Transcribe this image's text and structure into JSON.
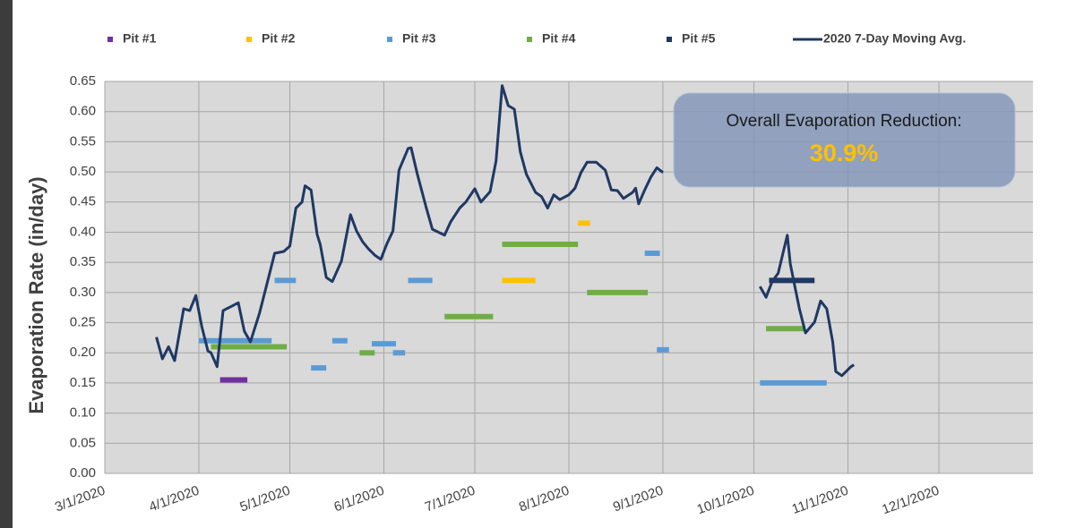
{
  "chart_data": {
    "type": "line",
    "y_label": "Evaporation Rate (in/day)",
    "annotation": {
      "text": "Overall Evaporation Reduction:",
      "highlight": "30.9%"
    },
    "xlim": [
      "2020-03-01",
      "2021-01-01"
    ],
    "xticks": [
      {
        "value": "2020-03-01",
        "label": "3/1/2020"
      },
      {
        "value": "2020-04-01",
        "label": "4/1/2020"
      },
      {
        "value": "2020-05-01",
        "label": "5/1/2020"
      },
      {
        "value": "2020-06-01",
        "label": "6/1/2020"
      },
      {
        "value": "2020-07-01",
        "label": "7/1/2020"
      },
      {
        "value": "2020-08-01",
        "label": "8/1/2020"
      },
      {
        "value": "2020-09-01",
        "label": "9/1/2020"
      },
      {
        "value": "2020-10-01",
        "label": "10/1/2020"
      },
      {
        "value": "2020-11-01",
        "label": "11/1/2020"
      },
      {
        "value": "2020-12-01",
        "label": "12/1/2020"
      }
    ],
    "ylim": [
      0,
      0.65
    ],
    "yticks": [
      {
        "value": 0,
        "label": "0.00"
      },
      {
        "value": 0.05,
        "label": "0.05"
      },
      {
        "value": 0.1,
        "label": "0.10"
      },
      {
        "value": 0.15,
        "label": "0.15"
      },
      {
        "value": 0.2,
        "label": "0.20"
      },
      {
        "value": 0.25,
        "label": "0.25"
      },
      {
        "value": 0.3,
        "label": "0.30"
      },
      {
        "value": 0.35,
        "label": "0.35"
      },
      {
        "value": 0.4,
        "label": "0.40"
      },
      {
        "value": 0.45,
        "label": "0.45"
      },
      {
        "value": 0.5,
        "label": "0.50"
      },
      {
        "value": 0.55,
        "label": "0.55"
      },
      {
        "value": 0.6,
        "label": "0.60"
      },
      {
        "value": 0.65,
        "label": "0.65"
      }
    ],
    "grid": true,
    "series": [
      {
        "name": "Pit #1",
        "color": "#7030a0",
        "segments": [
          {
            "start": "2020-04-08",
            "end": "2020-04-17",
            "value": 0.155
          }
        ]
      },
      {
        "name": "Pit #2",
        "color": "#ffc000",
        "segments": [
          {
            "start": "2020-07-10",
            "end": "2020-07-21",
            "value": 0.32
          },
          {
            "start": "2020-08-04",
            "end": "2020-08-08",
            "value": 0.415
          }
        ]
      },
      {
        "name": "Pit #3",
        "color": "#5b9bd5",
        "segments": [
          {
            "start": "2020-04-01",
            "end": "2020-04-25",
            "value": 0.22
          },
          {
            "start": "2020-04-26",
            "end": "2020-05-03",
            "value": 0.32
          },
          {
            "start": "2020-05-08",
            "end": "2020-05-13",
            "value": 0.175
          },
          {
            "start": "2020-05-15",
            "end": "2020-05-20",
            "value": 0.22
          },
          {
            "start": "2020-05-28",
            "end": "2020-06-05",
            "value": 0.215
          },
          {
            "start": "2020-06-04",
            "end": "2020-06-08",
            "value": 0.2
          },
          {
            "start": "2020-06-09",
            "end": "2020-06-17",
            "value": 0.32
          },
          {
            "start": "2020-08-26",
            "end": "2020-08-31",
            "value": 0.365
          },
          {
            "start": "2020-08-30",
            "end": "2020-09-03",
            "value": 0.205
          },
          {
            "start": "2020-10-03",
            "end": "2020-10-25",
            "value": 0.15
          }
        ]
      },
      {
        "name": "Pit #4",
        "color": "#70ad47",
        "segments": [
          {
            "start": "2020-04-05",
            "end": "2020-04-30",
            "value": 0.21
          },
          {
            "start": "2020-05-24",
            "end": "2020-05-29",
            "value": 0.2
          },
          {
            "start": "2020-06-21",
            "end": "2020-07-07",
            "value": 0.26
          },
          {
            "start": "2020-07-10",
            "end": "2020-08-04",
            "value": 0.38
          },
          {
            "start": "2020-08-07",
            "end": "2020-08-27",
            "value": 0.3
          },
          {
            "start": "2020-10-05",
            "end": "2020-10-18",
            "value": 0.24
          }
        ]
      },
      {
        "name": "Pit #5",
        "color": "#1f3864",
        "segments": [
          {
            "start": "2020-10-06",
            "end": "2020-10-21",
            "value": 0.32
          }
        ]
      },
      {
        "name": "2020 7-Day Moving Avg.",
        "color": "#1f3864",
        "x": [
          "2020-03-18",
          "2020-03-20",
          "2020-03-22",
          "2020-03-24",
          "2020-03-27",
          "2020-03-29",
          "2020-03-31",
          "2020-04-02",
          "2020-04-04",
          "2020-04-05",
          "2020-04-07",
          "2020-04-09",
          "2020-04-14",
          "2020-04-16",
          "2020-04-18",
          "2020-04-21",
          "2020-04-24",
          "2020-04-26",
          "2020-04-29",
          "2020-05-01",
          "2020-05-03",
          "2020-05-05",
          "2020-05-06",
          "2020-05-08",
          "2020-05-10",
          "2020-05-11",
          "2020-05-13",
          "2020-05-15",
          "2020-05-18",
          "2020-05-21",
          "2020-05-23",
          "2020-05-25",
          "2020-05-27",
          "2020-05-29",
          "2020-05-31",
          "2020-06-02",
          "2020-06-04",
          "2020-06-06",
          "2020-06-09",
          "2020-06-10",
          "2020-06-12",
          "2020-06-15",
          "2020-06-17",
          "2020-06-21",
          "2020-06-23",
          "2020-06-26",
          "2020-06-28",
          "2020-07-01",
          "2020-07-03",
          "2020-07-06",
          "2020-07-08",
          "2020-07-10",
          "2020-07-12",
          "2020-07-14",
          "2020-07-16",
          "2020-07-18",
          "2020-07-21",
          "2020-07-23",
          "2020-07-25",
          "2020-07-27",
          "2020-07-29",
          "2020-08-01",
          "2020-08-03",
          "2020-08-05",
          "2020-08-07",
          "2020-08-10",
          "2020-08-13",
          "2020-08-15",
          "2020-08-17",
          "2020-08-19",
          "2020-08-22",
          "2020-08-23",
          "2020-08-24",
          "2020-08-26",
          "2020-08-28",
          "2020-08-30",
          "2020-09-01",
          "2020-09-15",
          "2020-10-03",
          "2020-10-05",
          "2020-10-07",
          "2020-10-09",
          "2020-10-12",
          "2020-10-13",
          "2020-10-16",
          "2020-10-18",
          "2020-10-21",
          "2020-10-23",
          "2020-10-25",
          "2020-10-27",
          "2020-10-28",
          "2020-10-30",
          "2020-11-02",
          "2020-11-03"
        ],
        "values": [
          0.226,
          0.19,
          0.21,
          0.187,
          0.273,
          0.27,
          0.295,
          0.243,
          0.203,
          0.2,
          0.177,
          0.27,
          0.283,
          0.236,
          0.218,
          0.266,
          0.325,
          0.365,
          0.368,
          0.377,
          0.44,
          0.45,
          0.477,
          0.47,
          0.396,
          0.38,
          0.325,
          0.318,
          0.352,
          0.429,
          0.402,
          0.384,
          0.372,
          0.362,
          0.355,
          0.381,
          0.402,
          0.503,
          0.539,
          0.54,
          0.497,
          0.44,
          0.405,
          0.395,
          0.417,
          0.44,
          0.45,
          0.472,
          0.45,
          0.467,
          0.518,
          0.643,
          0.61,
          0.604,
          0.533,
          0.496,
          0.466,
          0.459,
          0.44,
          0.462,
          0.454,
          0.462,
          0.473,
          0.499,
          0.516,
          0.516,
          0.503,
          0.47,
          0.469,
          0.456,
          0.466,
          0.473,
          0.447,
          0.47,
          0.491,
          0.507,
          0.499,
          null,
          0.31,
          0.292,
          0.318,
          0.332,
          0.395,
          0.347,
          0.273,
          0.233,
          0.251,
          0.286,
          0.273,
          0.218,
          0.169,
          0.162,
          0.177,
          0.18
        ]
      }
    ]
  }
}
